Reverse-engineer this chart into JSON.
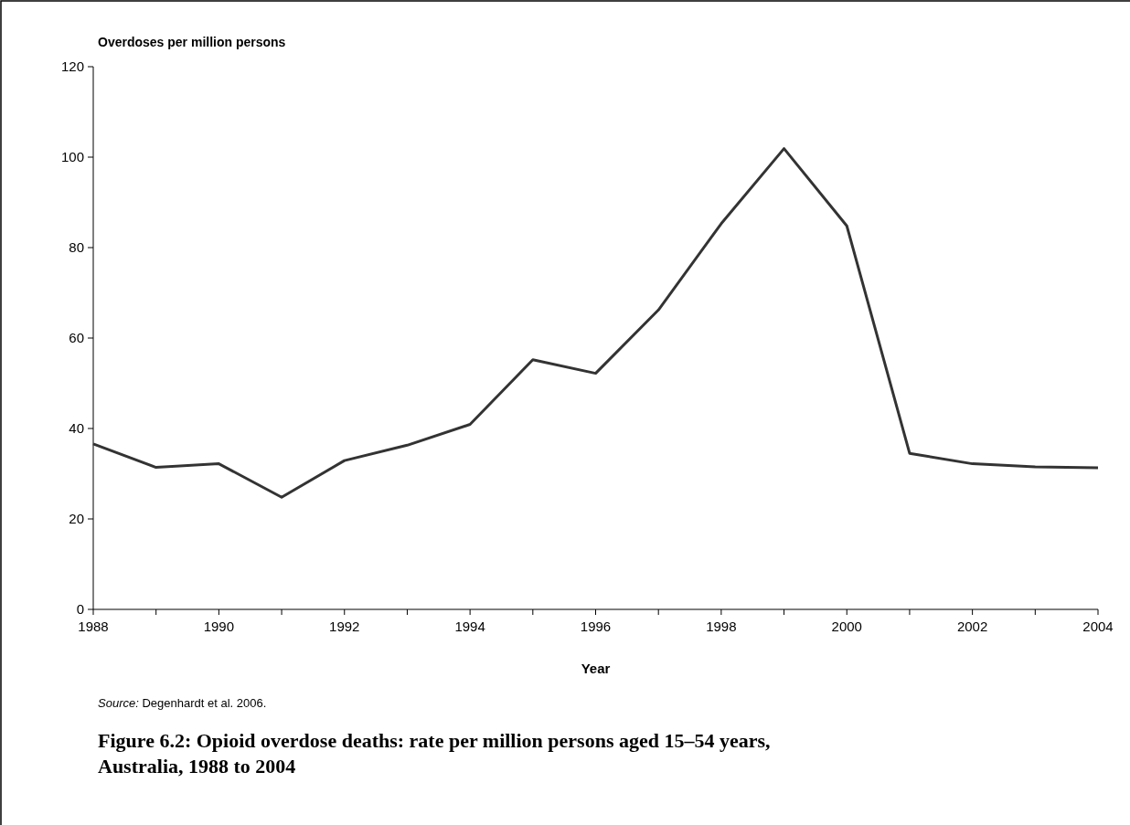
{
  "chart_data": {
    "type": "line",
    "title": "Figure 6.2: Opioid overdose deaths: rate per million persons aged 15–54 years, Australia, 1988 to 2004",
    "xlabel": "Year",
    "ylabel": "Overdoses per million persons",
    "annotations": [
      "Source: Degenhardt et al. 2006."
    ],
    "x": [
      1988,
      1989,
      1990,
      1991,
      1992,
      1993,
      1994,
      1995,
      1996,
      1997,
      1998,
      1999,
      2000,
      2001,
      2002,
      2003,
      2004
    ],
    "series": [
      {
        "color": "#333333",
        "values": [
          36.6,
          31.4,
          32.2,
          24.8,
          32.9,
          36.3,
          40.9,
          55.2,
          52.2,
          66.2,
          85.3,
          101.9,
          84.8,
          34.5,
          32.2,
          31.5,
          31.3
        ]
      }
    ],
    "xlim": [
      1988,
      2004
    ],
    "xticks": [
      1988,
      {
        "value": 1989,
        "label": null
      },
      1990,
      {
        "value": 1991,
        "label": null
      },
      1992,
      {
        "value": 1993,
        "label": null
      },
      1994,
      {
        "value": 1995,
        "label": null
      },
      1996,
      {
        "value": 1997,
        "label": null
      },
      1998,
      {
        "value": 1999,
        "label": null
      },
      2000,
      {
        "value": 2001,
        "label": null
      },
      2002,
      {
        "value": 2003,
        "label": null
      },
      2004
    ],
    "ylim": [
      0,
      120
    ],
    "yticks": [
      0,
      20,
      40,
      60,
      80,
      100,
      120
    ],
    "marker": "none",
    "line_style": "solid"
  }
}
